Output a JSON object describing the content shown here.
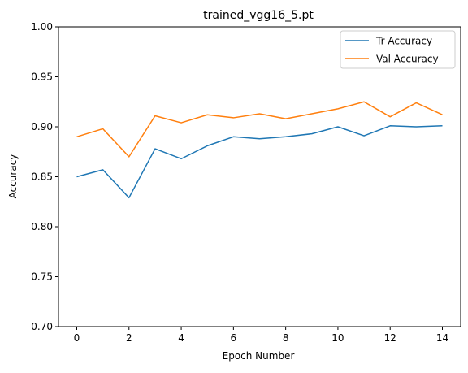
{
  "chart_data": {
    "type": "line",
    "title": "trained_vgg16_5.pt",
    "xlabel": "Epoch Number",
    "ylabel": "Accuracy",
    "xlim": [
      -0.7,
      14.7
    ],
    "ylim": [
      0.7,
      1.0
    ],
    "xticks": [
      0,
      2,
      4,
      6,
      8,
      10,
      12,
      14
    ],
    "xtick_labels": [
      "0",
      "2",
      "4",
      "6",
      "8",
      "10",
      "12",
      "14"
    ],
    "yticks": [
      0.7,
      0.75,
      0.8,
      0.85,
      0.9,
      0.95,
      1.0
    ],
    "ytick_labels": [
      "0.70",
      "0.75",
      "0.80",
      "0.85",
      "0.90",
      "0.95",
      "1.00"
    ],
    "grid": false,
    "legend_position": "top-right",
    "x": [
      0,
      1,
      2,
      3,
      4,
      5,
      6,
      7,
      8,
      9,
      10,
      11,
      12,
      13,
      14
    ],
    "series": [
      {
        "name": "Tr Accuracy",
        "color": "#1f77b4",
        "values": [
          0.85,
          0.857,
          0.829,
          0.878,
          0.868,
          0.881,
          0.89,
          0.888,
          0.89,
          0.893,
          0.9,
          0.891,
          0.901,
          0.9,
          0.901
        ]
      },
      {
        "name": "Val Accuracy",
        "color": "#ff7f0e",
        "values": [
          0.89,
          0.898,
          0.87,
          0.911,
          0.904,
          0.912,
          0.909,
          0.913,
          0.908,
          0.913,
          0.918,
          0.925,
          0.91,
          0.924,
          0.912
        ]
      }
    ]
  }
}
